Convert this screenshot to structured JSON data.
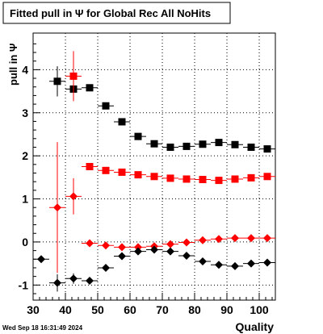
{
  "chart_data": {
    "type": "scatter",
    "title": "Fitted pull in Ψ for Global Rec All NoHits",
    "xlabel": "Quality",
    "ylabel": "pull in Ψ",
    "xlim": [
      30,
      105
    ],
    "ylim": [
      -1.35,
      4.85
    ],
    "x_ticks": [
      30,
      40,
      50,
      60,
      70,
      80,
      90,
      100
    ],
    "y_ticks": [
      -1,
      0,
      1,
      2,
      3,
      4
    ],
    "grid": true,
    "x_bin_halfwidth": 2.5,
    "timestamp": "Wed Sep 18 16:31:49 2024",
    "series": [
      {
        "marker": "square",
        "color": "#000000",
        "points": [
          {
            "x": 37.5,
            "y": 3.73,
            "err": 0.35
          },
          {
            "x": 42.5,
            "y": 3.55,
            "err": 0.22
          },
          {
            "x": 47.5,
            "y": 3.58,
            "err": 0.06
          },
          {
            "x": 52.5,
            "y": 3.16,
            "err": 0.05
          },
          {
            "x": 57.5,
            "y": 2.79,
            "err": 0.04
          },
          {
            "x": 62.5,
            "y": 2.45,
            "err": 0.04
          },
          {
            "x": 67.5,
            "y": 2.28,
            "err": 0.04
          },
          {
            "x": 72.5,
            "y": 2.2,
            "err": 0.04
          },
          {
            "x": 77.5,
            "y": 2.22,
            "err": 0.04
          },
          {
            "x": 82.5,
            "y": 2.27,
            "err": 0.04
          },
          {
            "x": 87.5,
            "y": 2.31,
            "err": 0.04
          },
          {
            "x": 92.5,
            "y": 2.26,
            "err": 0.04
          },
          {
            "x": 97.5,
            "y": 2.2,
            "err": 0.04
          },
          {
            "x": 102.5,
            "y": 2.16,
            "err": 0.04
          }
        ]
      },
      {
        "marker": "square",
        "color": "#ff0000",
        "points": [
          {
            "x": 42.5,
            "y": 3.85,
            "err": 0.58
          },
          {
            "x": 47.5,
            "y": 1.75,
            "err": 0.04
          },
          {
            "x": 52.5,
            "y": 1.66,
            "err": 0.04
          },
          {
            "x": 57.5,
            "y": 1.62,
            "err": 0.04
          },
          {
            "x": 62.5,
            "y": 1.56,
            "err": 0.04
          },
          {
            "x": 67.5,
            "y": 1.52,
            "err": 0.04
          },
          {
            "x": 72.5,
            "y": 1.48,
            "err": 0.04
          },
          {
            "x": 77.5,
            "y": 1.46,
            "err": 0.04
          },
          {
            "x": 82.5,
            "y": 1.45,
            "err": 0.04
          },
          {
            "x": 87.5,
            "y": 1.43,
            "err": 0.04
          },
          {
            "x": 92.5,
            "y": 1.46,
            "err": 0.04
          },
          {
            "x": 97.5,
            "y": 1.49,
            "err": 0.04
          },
          {
            "x": 102.5,
            "y": 1.52,
            "err": 0.04
          }
        ]
      },
      {
        "marker": "diamond",
        "color": "#ff0000",
        "points": [
          {
            "x": 37.5,
            "y": 0.8,
            "err": 1.52
          },
          {
            "x": 42.5,
            "y": 1.06,
            "err": 0.42
          },
          {
            "x": 47.5,
            "y": -0.03,
            "err": 0.03
          },
          {
            "x": 52.5,
            "y": -0.08,
            "err": 0.03
          },
          {
            "x": 57.5,
            "y": -0.12,
            "err": 0.03
          },
          {
            "x": 62.5,
            "y": -0.12,
            "err": 0.03
          },
          {
            "x": 67.5,
            "y": -0.1,
            "err": 0.03
          },
          {
            "x": 72.5,
            "y": -0.05,
            "err": 0.03
          },
          {
            "x": 77.5,
            "y": -0.01,
            "err": 0.03
          },
          {
            "x": 82.5,
            "y": 0.04,
            "err": 0.03
          },
          {
            "x": 87.5,
            "y": 0.07,
            "err": 0.03
          },
          {
            "x": 92.5,
            "y": 0.09,
            "err": 0.03
          },
          {
            "x": 97.5,
            "y": 0.09,
            "err": 0.03
          },
          {
            "x": 102.5,
            "y": 0.09,
            "err": 0.03
          }
        ]
      },
      {
        "marker": "diamond",
        "color": "#000000",
        "points": [
          {
            "x": 32.5,
            "y": -0.4,
            "err": 0.0
          },
          {
            "x": 37.5,
            "y": -0.95,
            "err": 0.2
          },
          {
            "x": 42.5,
            "y": -0.85,
            "err": 0.12
          },
          {
            "x": 47.5,
            "y": -0.9,
            "err": 0.05
          },
          {
            "x": 52.5,
            "y": -0.6,
            "err": 0.04
          },
          {
            "x": 57.5,
            "y": -0.33,
            "err": 0.04
          },
          {
            "x": 62.5,
            "y": -0.22,
            "err": 0.04
          },
          {
            "x": 67.5,
            "y": -0.18,
            "err": 0.04
          },
          {
            "x": 72.5,
            "y": -0.22,
            "err": 0.04
          },
          {
            "x": 77.5,
            "y": -0.32,
            "err": 0.04
          },
          {
            "x": 82.5,
            "y": -0.45,
            "err": 0.04
          },
          {
            "x": 87.5,
            "y": -0.53,
            "err": 0.04
          },
          {
            "x": 92.5,
            "y": -0.56,
            "err": 0.04
          },
          {
            "x": 97.5,
            "y": -0.5,
            "err": 0.04
          },
          {
            "x": 102.5,
            "y": -0.48,
            "err": 0.04
          }
        ]
      }
    ]
  }
}
